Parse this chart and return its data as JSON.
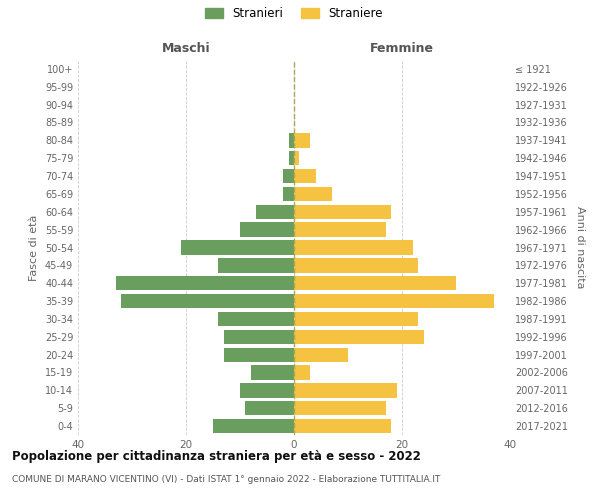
{
  "age_groups": [
    "0-4",
    "5-9",
    "10-14",
    "15-19",
    "20-24",
    "25-29",
    "30-34",
    "35-39",
    "40-44",
    "45-49",
    "50-54",
    "55-59",
    "60-64",
    "65-69",
    "70-74",
    "75-79",
    "80-84",
    "85-89",
    "90-94",
    "95-99",
    "100+"
  ],
  "birth_years": [
    "2017-2021",
    "2012-2016",
    "2007-2011",
    "2002-2006",
    "1997-2001",
    "1992-1996",
    "1987-1991",
    "1982-1986",
    "1977-1981",
    "1972-1976",
    "1967-1971",
    "1962-1966",
    "1957-1961",
    "1952-1956",
    "1947-1951",
    "1942-1946",
    "1937-1941",
    "1932-1936",
    "1927-1931",
    "1922-1926",
    "≤ 1921"
  ],
  "males": [
    15,
    9,
    10,
    8,
    13,
    13,
    14,
    32,
    33,
    14,
    21,
    10,
    7,
    2,
    2,
    1,
    1,
    0,
    0,
    0,
    0
  ],
  "females": [
    18,
    17,
    19,
    3,
    10,
    24,
    23,
    37,
    30,
    23,
    22,
    17,
    18,
    7,
    4,
    1,
    3,
    0,
    0,
    0,
    0
  ],
  "male_color": "#6a9e5e",
  "female_color": "#f5c242",
  "background_color": "#ffffff",
  "grid_color": "#cccccc",
  "title": "Popolazione per cittadinanza straniera per età e sesso - 2022",
  "subtitle": "COMUNE DI MARANO VICENTINO (VI) - Dati ISTAT 1° gennaio 2022 - Elaborazione TUTTITALIA.IT",
  "ylabel_left": "Fasce di età",
  "ylabel_right": "Anni di nascita",
  "xlabel_left": "Maschi",
  "xlabel_right": "Femmine",
  "legend_male": "Stranieri",
  "legend_female": "Straniere",
  "xlim": 40,
  "bar_height": 0.8
}
